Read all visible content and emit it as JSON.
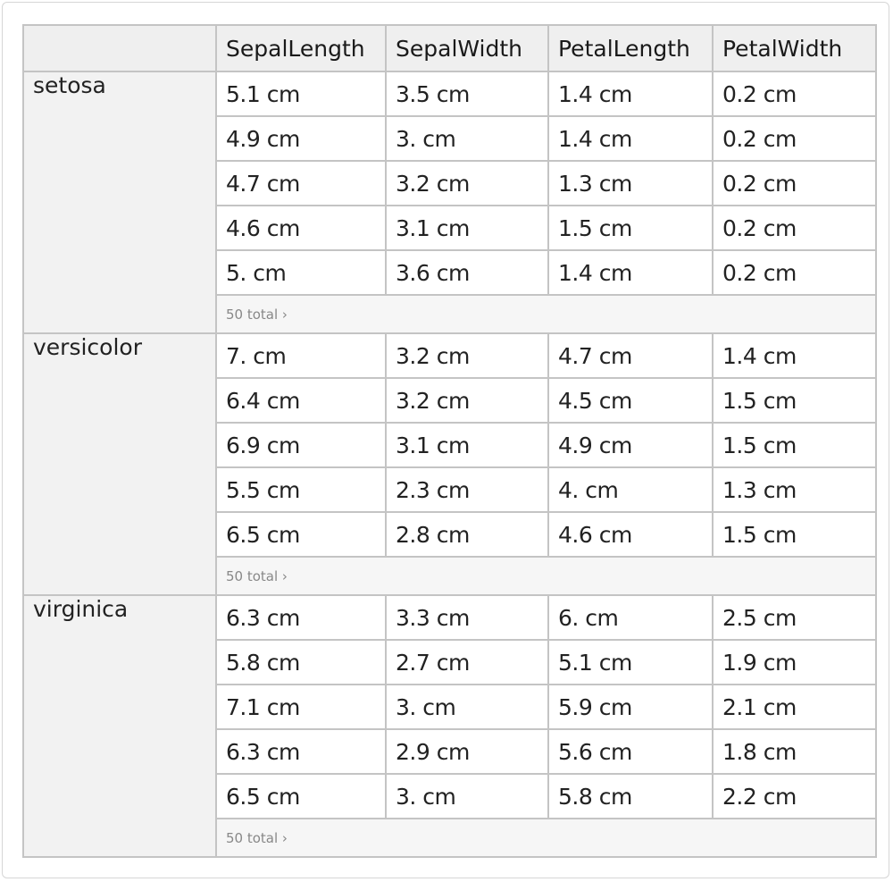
{
  "columns": [
    "SepalLength",
    "SepalWidth",
    "PetalLength",
    "PetalWidth"
  ],
  "groups": [
    {
      "name": "setosa",
      "rows": [
        [
          "5.1 cm",
          "3.5 cm",
          "1.4 cm",
          "0.2 cm"
        ],
        [
          "4.9 cm",
          "3. cm",
          "1.4 cm",
          "0.2 cm"
        ],
        [
          "4.7 cm",
          "3.2 cm",
          "1.3 cm",
          "0.2 cm"
        ],
        [
          "4.6 cm",
          "3.1 cm",
          "1.5 cm",
          "0.2 cm"
        ],
        [
          "5. cm",
          "3.6 cm",
          "1.4 cm",
          "0.2 cm"
        ]
      ],
      "total_label": "50 total ›"
    },
    {
      "name": "versicolor",
      "rows": [
        [
          "7. cm",
          "3.2 cm",
          "4.7 cm",
          "1.4 cm"
        ],
        [
          "6.4 cm",
          "3.2 cm",
          "4.5 cm",
          "1.5 cm"
        ],
        [
          "6.9 cm",
          "3.1 cm",
          "4.9 cm",
          "1.5 cm"
        ],
        [
          "5.5 cm",
          "2.3 cm",
          "4. cm",
          "1.3 cm"
        ],
        [
          "6.5 cm",
          "2.8 cm",
          "4.6 cm",
          "1.5 cm"
        ]
      ],
      "total_label": "50 total ›"
    },
    {
      "name": "virginica",
      "rows": [
        [
          "6.3 cm",
          "3.3 cm",
          "6. cm",
          "2.5 cm"
        ],
        [
          "5.8 cm",
          "2.7 cm",
          "5.1 cm",
          "1.9 cm"
        ],
        [
          "7.1 cm",
          "3. cm",
          "5.9 cm",
          "2.1 cm"
        ],
        [
          "6.3 cm",
          "2.9 cm",
          "5.6 cm",
          "1.8 cm"
        ],
        [
          "6.5 cm",
          "3. cm",
          "5.8 cm",
          "2.2 cm"
        ]
      ],
      "total_label": "50 total ›"
    }
  ]
}
